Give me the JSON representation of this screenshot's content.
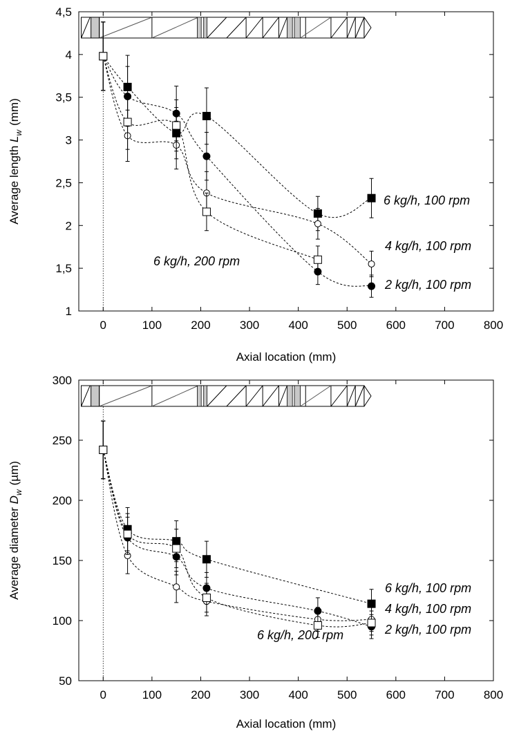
{
  "chart_data": [
    {
      "type": "line",
      "xlabel": "Axial location (mm)",
      "ylabel": "Average length ",
      "ylabel_symbol": "L",
      "ylabel_subscript": "w",
      "ylabel_unit": "(mm)",
      "xlim": [
        -50,
        800
      ],
      "ylim": [
        1,
        4.5
      ],
      "xticks": [
        0,
        100,
        200,
        300,
        400,
        500,
        600,
        700,
        800
      ],
      "xtick_labels": [
        "0",
        "100",
        "200",
        "300",
        "400",
        "500",
        "600",
        "700",
        "800"
      ],
      "yticks": [
        1,
        1.5,
        2,
        2.5,
        3,
        3.5,
        4,
        4.5
      ],
      "ytick_labels": [
        "1",
        "1,5",
        "2",
        "2,5",
        "3",
        "3,5",
        "4",
        "4,5"
      ],
      "grid": false,
      "series": [
        {
          "marker": "filled-square",
          "label": "6 kg/h, 100 rpm",
          "x": [
            0,
            50,
            150,
            212,
            440,
            550
          ],
          "y": [
            3.98,
            3.62,
            3.08,
            3.28,
            2.14,
            2.32
          ],
          "err": [
            0.4,
            0.37,
            0.3,
            0.33,
            0.2,
            0.23
          ]
        },
        {
          "marker": "open-circle",
          "label": "4 kg/h, 100 rpm",
          "x": [
            0,
            50,
            150,
            212,
            440,
            550
          ],
          "y": [
            3.98,
            3.05,
            2.94,
            2.38,
            2.02,
            1.55
          ],
          "err": [
            0.4,
            0.3,
            0.28,
            0.25,
            0.18,
            0.15
          ]
        },
        {
          "marker": "filled-circle",
          "label": "2 kg/h, 100 rpm",
          "x": [
            0,
            50,
            150,
            212,
            440,
            550
          ],
          "y": [
            3.98,
            3.51,
            3.31,
            2.81,
            1.46,
            1.29
          ],
          "err": [
            0.4,
            0.35,
            0.32,
            0.28,
            0.15,
            0.13
          ]
        },
        {
          "marker": "open-square",
          "label": "6 kg/h, 200 rpm",
          "x": [
            0,
            50,
            150,
            212,
            440
          ],
          "y": [
            3.98,
            3.21,
            3.17,
            2.16,
            1.6
          ],
          "err": [
            0.4,
            0.32,
            0.3,
            0.22,
            0.16
          ]
        }
      ]
    },
    {
      "type": "line",
      "xlabel": "Axial location (mm)",
      "ylabel": "Average diameter ",
      "ylabel_symbol": "D",
      "ylabel_subscript": "w",
      "ylabel_unit": "(µm)",
      "xlim": [
        -50,
        800
      ],
      "ylim": [
        50,
        300
      ],
      "xticks": [
        0,
        100,
        200,
        300,
        400,
        500,
        600,
        700,
        800
      ],
      "xtick_labels": [
        "0",
        "100",
        "200",
        "300",
        "400",
        "500",
        "600",
        "700",
        "800"
      ],
      "yticks": [
        50,
        100,
        150,
        200,
        250,
        300
      ],
      "ytick_labels": [
        "50",
        "100",
        "150",
        "200",
        "250",
        "300"
      ],
      "grid": false,
      "series": [
        {
          "marker": "filled-square",
          "label": "6 kg/h, 100 rpm",
          "x": [
            0,
            50,
            150,
            212,
            550
          ],
          "y": [
            242,
            176,
            166,
            151,
            114
          ],
          "err": [
            24,
            18,
            17,
            15,
            12
          ]
        },
        {
          "marker": "filled-circle",
          "label": "4 kg/h, 100 rpm",
          "x": [
            0,
            50,
            150,
            212,
            440,
            550
          ],
          "y": [
            242,
            169,
            153,
            127,
            108,
            95
          ],
          "err": [
            24,
            17,
            15,
            13,
            11,
            10
          ]
        },
        {
          "marker": "open-circle",
          "label": "2 kg/h, 100 rpm",
          "x": [
            0,
            50,
            150,
            212,
            440,
            550
          ],
          "y": [
            242,
            154,
            128,
            116,
            101,
            101
          ],
          "err": [
            24,
            15,
            13,
            12,
            10,
            10
          ]
        },
        {
          "marker": "open-square",
          "label": "6 kg/h, 200 rpm",
          "x": [
            0,
            50,
            150,
            212,
            440,
            550
          ],
          "y": [
            242,
            172,
            160,
            119,
            96,
            98
          ],
          "err": [
            24,
            17,
            16,
            12,
            10,
            10
          ]
        }
      ]
    }
  ]
}
